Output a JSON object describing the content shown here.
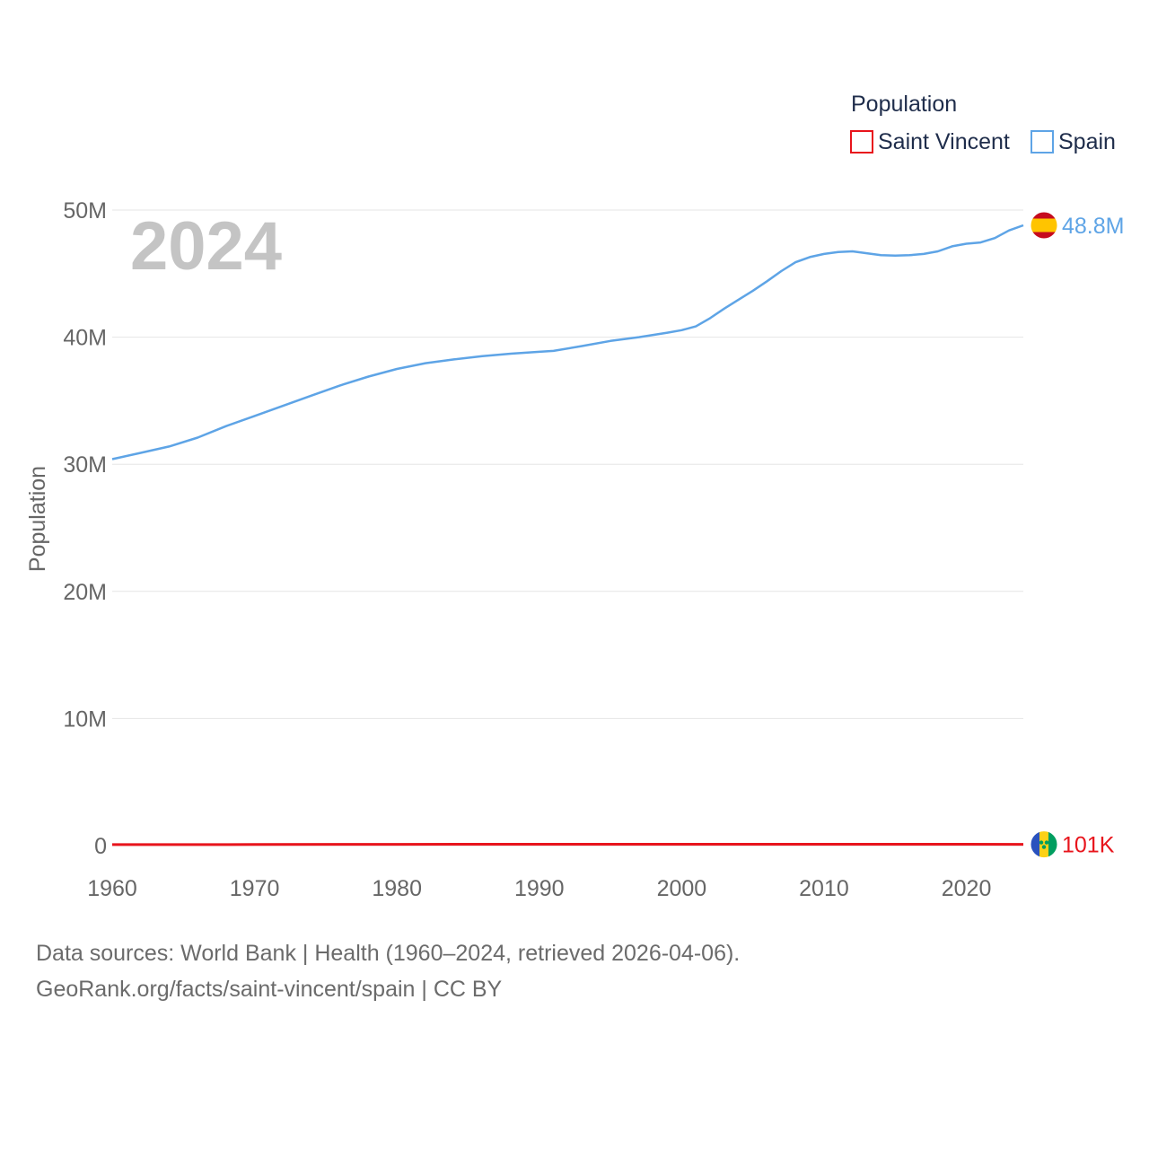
{
  "chart_data": {
    "type": "line",
    "year_label": "2024",
    "legend_title": "Population",
    "ylabel": "Population",
    "xlim": [
      1960,
      2024
    ],
    "ylim": [
      0,
      50000000
    ],
    "y_ticks": [
      {
        "value": 0,
        "label": "0"
      },
      {
        "value": 10000000,
        "label": "10M"
      },
      {
        "value": 20000000,
        "label": "20M"
      },
      {
        "value": 30000000,
        "label": "30M"
      },
      {
        "value": 40000000,
        "label": "40M"
      },
      {
        "value": 50000000,
        "label": "50M"
      }
    ],
    "x_ticks": [
      {
        "value": 1960,
        "label": "1960"
      },
      {
        "value": 1970,
        "label": "1970"
      },
      {
        "value": 1980,
        "label": "1980"
      },
      {
        "value": 1990,
        "label": "1990"
      },
      {
        "value": 2000,
        "label": "2000"
      },
      {
        "value": 2010,
        "label": "2010"
      },
      {
        "value": 2020,
        "label": "2020"
      }
    ],
    "series": [
      {
        "name": "Saint Vincent",
        "color": "#e8141c",
        "end_label": "101K",
        "flag": "saint-vincent-flag-icon",
        "points": [
          [
            1960,
            81000
          ],
          [
            1970,
            87000
          ],
          [
            1980,
            98000
          ],
          [
            1990,
            108000
          ],
          [
            2000,
            108000
          ],
          [
            2010,
            109000
          ],
          [
            2020,
            104000
          ],
          [
            2024,
            101000
          ]
        ]
      },
      {
        "name": "Spain",
        "color": "#5ea4e6",
        "end_label": "48.8M",
        "flag": "spain-flag-icon",
        "points": [
          [
            1960,
            30400000
          ],
          [
            1962,
            30900000
          ],
          [
            1964,
            31400000
          ],
          [
            1966,
            32100000
          ],
          [
            1968,
            33000000
          ],
          [
            1970,
            33800000
          ],
          [
            1972,
            34600000
          ],
          [
            1974,
            35400000
          ],
          [
            1976,
            36200000
          ],
          [
            1978,
            36900000
          ],
          [
            1980,
            37500000
          ],
          [
            1982,
            37950000
          ],
          [
            1984,
            38250000
          ],
          [
            1986,
            38500000
          ],
          [
            1988,
            38700000
          ],
          [
            1990,
            38850000
          ],
          [
            1991,
            38920000
          ],
          [
            1993,
            39300000
          ],
          [
            1995,
            39700000
          ],
          [
            1997,
            40000000
          ],
          [
            1999,
            40350000
          ],
          [
            2000,
            40550000
          ],
          [
            2001,
            40850000
          ],
          [
            2002,
            41500000
          ],
          [
            2003,
            42250000
          ],
          [
            2004,
            42950000
          ],
          [
            2005,
            43650000
          ],
          [
            2006,
            44400000
          ],
          [
            2007,
            45200000
          ],
          [
            2008,
            45900000
          ],
          [
            2009,
            46300000
          ],
          [
            2010,
            46550000
          ],
          [
            2011,
            46700000
          ],
          [
            2012,
            46750000
          ],
          [
            2013,
            46600000
          ],
          [
            2014,
            46450000
          ],
          [
            2015,
            46420000
          ],
          [
            2016,
            46450000
          ],
          [
            2017,
            46550000
          ],
          [
            2018,
            46750000
          ],
          [
            2019,
            47150000
          ],
          [
            2020,
            47350000
          ],
          [
            2021,
            47450000
          ],
          [
            2022,
            47800000
          ],
          [
            2023,
            48400000
          ],
          [
            2024,
            48800000
          ]
        ]
      }
    ]
  },
  "footer": {
    "sources": "Data sources: World Bank | Health (1960–2024, retrieved 2026-04-06).",
    "link": "GeoRank.org/facts/saint-vincent/spain | CC BY"
  }
}
